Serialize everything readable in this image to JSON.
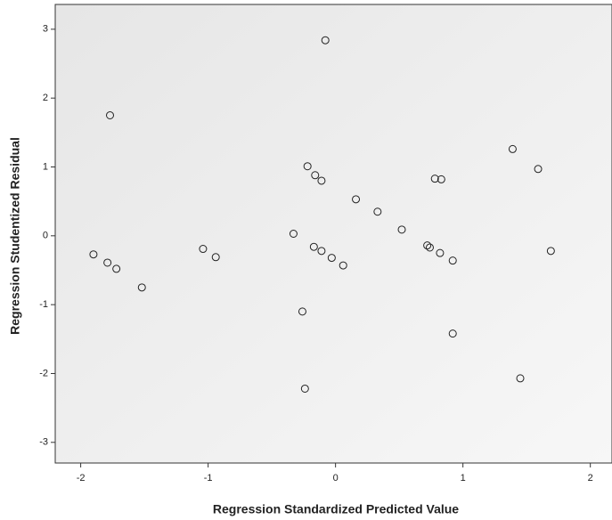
{
  "chart_data": {
    "type": "scatter",
    "xlabel": "Regression Standardized Predicted Value",
    "ylabel": "Regression Studentized Residual",
    "xlim": [
      -2.2,
      2.17
    ],
    "ylim": [
      -3.3,
      3.36
    ],
    "xticks": [
      -2,
      -1,
      0,
      1,
      2
    ],
    "yticks": [
      -3,
      -2,
      -1,
      0,
      1,
      2,
      3
    ],
    "color": "#222222",
    "x": [
      -0.08,
      -1.77,
      1.39,
      1.59,
      -0.22,
      -0.16,
      -0.11,
      0.78,
      0.83,
      0.16,
      0.33,
      -0.33,
      0.52,
      -1.04,
      -0.94,
      -1.9,
      -1.79,
      -1.72,
      -1.52,
      -0.17,
      -0.11,
      -0.03,
      0.06,
      0.72,
      0.74,
      0.82,
      0.92,
      1.69,
      -0.26,
      0.92,
      -0.24,
      1.45
    ],
    "values": [
      2.84,
      1.75,
      1.26,
      0.97,
      1.01,
      0.88,
      0.8,
      0.83,
      0.82,
      0.53,
      0.35,
      0.03,
      0.09,
      -0.19,
      -0.31,
      -0.27,
      -0.39,
      -0.48,
      -0.75,
      -0.16,
      -0.22,
      -0.32,
      -0.43,
      -0.14,
      -0.17,
      -0.25,
      -0.36,
      -0.22,
      -1.1,
      -1.42,
      -2.22,
      -2.07
    ]
  }
}
